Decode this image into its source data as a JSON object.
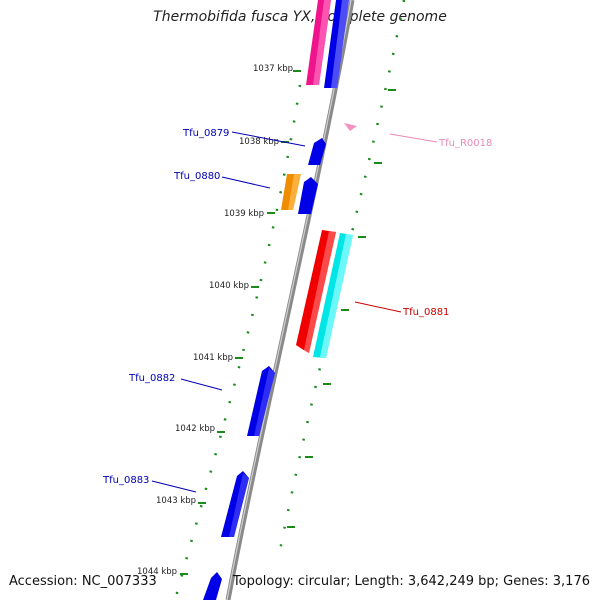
{
  "header": {
    "title": "Thermobifida fusca YX, complete genome"
  },
  "footer": {
    "accession": "Accession: NC_007333",
    "summary": "Topology: circular; Length: 3,642,249 bp; Genes: 3,176"
  },
  "ruler": {
    "unit": "kbp",
    "ticks": [
      {
        "label": "1037 kbp"
      },
      {
        "label": "1038 kbp"
      },
      {
        "label": "1039 kbp"
      },
      {
        "label": "1040 kbp"
      },
      {
        "label": "1041 kbp"
      },
      {
        "label": "1042 kbp"
      },
      {
        "label": "1043 kbp"
      },
      {
        "label": "1044 kbp"
      }
    ]
  },
  "features": [
    {
      "id": "pink_top",
      "color": "#f0148c",
      "label": ""
    },
    {
      "id": "blue_top",
      "color": "#0000e6",
      "label": ""
    },
    {
      "id": "Tfu_R0018",
      "color": "#f590c0",
      "label": "Tfu_R0018"
    },
    {
      "id": "Tfu_0879",
      "color": "#0000e6",
      "label": "Tfu_0879"
    },
    {
      "id": "Tfu_0880_orange",
      "color": "#f08c00",
      "label": ""
    },
    {
      "id": "Tfu_0880",
      "color": "#0000e6",
      "label": "Tfu_0880"
    },
    {
      "id": "Tfu_0881",
      "color": "#f00000",
      "label": "Tfu_0881"
    },
    {
      "id": "cyan_0881",
      "color": "#00e6e6",
      "label": ""
    },
    {
      "id": "Tfu_0882",
      "color": "#0000e6",
      "label": "Tfu_0882"
    },
    {
      "id": "Tfu_0883",
      "color": "#0000e6",
      "label": "Tfu_0883"
    },
    {
      "id": "blue_bottom",
      "color": "#0000e6",
      "label": ""
    }
  ],
  "colors": {
    "backbone": "#8a8a8a",
    "gc_skew": "#1a8a1a",
    "label_blue": "#0000b4",
    "label_red": "#c80000",
    "label_pink": "#e88ab8"
  }
}
